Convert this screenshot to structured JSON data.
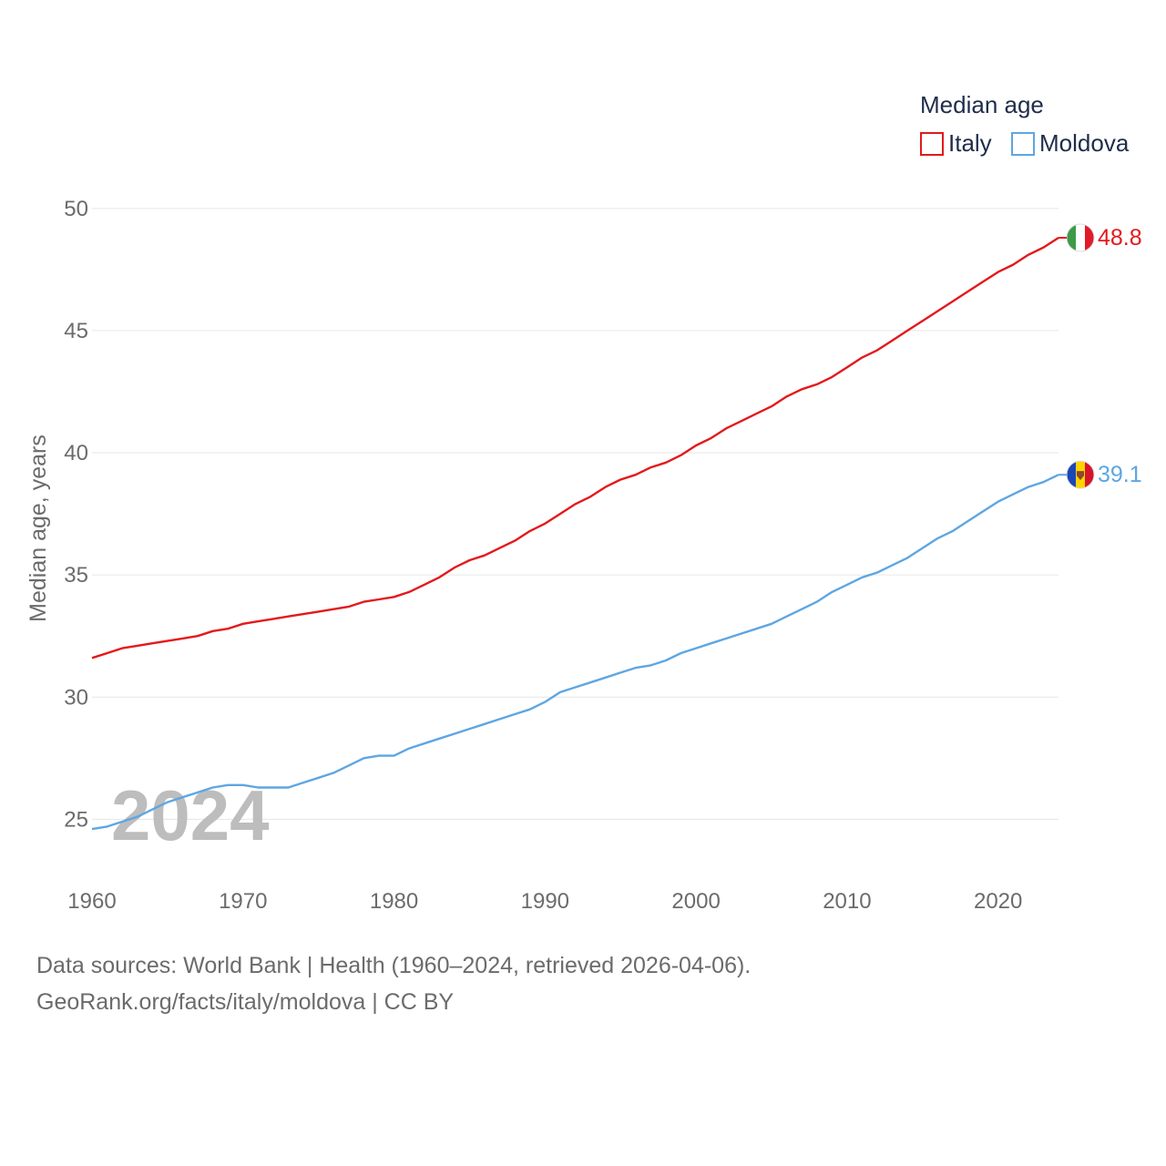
{
  "chart_data": {
    "type": "line",
    "title": "Median age",
    "xlabel": "",
    "ylabel": "Median age, years",
    "xlim": [
      1960,
      2024
    ],
    "ylim": [
      23,
      51
    ],
    "yticks": [
      25,
      30,
      35,
      40,
      45,
      50
    ],
    "xticks": [
      1960,
      1970,
      1980,
      1990,
      2000,
      2010,
      2020
    ],
    "year_label": "2024",
    "legend_placement": "top-right",
    "grid": true,
    "x": [
      1960,
      1961,
      1962,
      1963,
      1964,
      1965,
      1966,
      1967,
      1968,
      1969,
      1970,
      1971,
      1972,
      1973,
      1974,
      1975,
      1976,
      1977,
      1978,
      1979,
      1980,
      1981,
      1982,
      1983,
      1984,
      1985,
      1986,
      1987,
      1988,
      1989,
      1990,
      1991,
      1992,
      1993,
      1994,
      1995,
      1996,
      1997,
      1998,
      1999,
      2000,
      2001,
      2002,
      2003,
      2004,
      2005,
      2006,
      2007,
      2008,
      2009,
      2010,
      2011,
      2012,
      2013,
      2014,
      2015,
      2016,
      2017,
      2018,
      2019,
      2020,
      2021,
      2022,
      2023,
      2024
    ],
    "series": [
      {
        "name": "Italy",
        "color": "#e3191b",
        "end_label": "48.8",
        "flag": "italy-flag-icon",
        "values": [
          31.6,
          31.8,
          32.0,
          32.1,
          32.2,
          32.3,
          32.4,
          32.5,
          32.7,
          32.8,
          33.0,
          33.1,
          33.2,
          33.3,
          33.4,
          33.5,
          33.6,
          33.7,
          33.9,
          34.0,
          34.1,
          34.3,
          34.6,
          34.9,
          35.3,
          35.6,
          35.8,
          36.1,
          36.4,
          36.8,
          37.1,
          37.5,
          37.9,
          38.2,
          38.6,
          38.9,
          39.1,
          39.4,
          39.6,
          39.9,
          40.3,
          40.6,
          41.0,
          41.3,
          41.6,
          41.9,
          42.3,
          42.6,
          42.8,
          43.1,
          43.5,
          43.9,
          44.2,
          44.6,
          45.0,
          45.4,
          45.8,
          46.2,
          46.6,
          47.0,
          47.4,
          47.7,
          48.1,
          48.4,
          48.8
        ]
      },
      {
        "name": "Moldova",
        "color": "#5ea6e2",
        "end_label": "39.1",
        "flag": "moldova-flag-icon",
        "values": [
          24.6,
          24.7,
          24.9,
          25.1,
          25.4,
          25.7,
          25.9,
          26.1,
          26.3,
          26.4,
          26.4,
          26.3,
          26.3,
          26.3,
          26.5,
          26.7,
          26.9,
          27.2,
          27.5,
          27.6,
          27.6,
          27.9,
          28.1,
          28.3,
          28.5,
          28.7,
          28.9,
          29.1,
          29.3,
          29.5,
          29.8,
          30.2,
          30.4,
          30.6,
          30.8,
          31.0,
          31.2,
          31.3,
          31.5,
          31.8,
          32.0,
          32.2,
          32.4,
          32.6,
          32.8,
          33.0,
          33.3,
          33.6,
          33.9,
          34.3,
          34.6,
          34.9,
          35.1,
          35.4,
          35.7,
          36.1,
          36.5,
          36.8,
          37.2,
          37.6,
          38.0,
          38.3,
          38.6,
          38.8,
          39.1
        ]
      }
    ]
  },
  "footer": {
    "sources_line": "Data sources: World Bank | Health (1960–2024, retrieved 2026-04-06).",
    "credit_line": "GeoRank.org/facts/italy/moldova | CC BY"
  }
}
